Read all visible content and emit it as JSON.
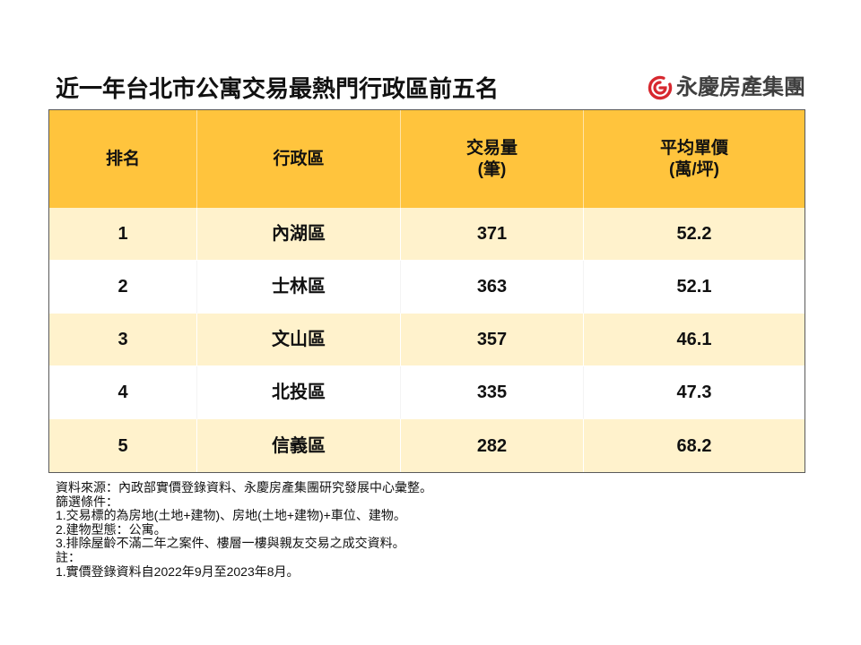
{
  "colors": {
    "header_fill": "#FFC43D",
    "row_fill_odd": "#FFF2CC",
    "row_fill_even": "#FFFFFF",
    "logo_red": "#D7282F",
    "logo_text": "#3F3F3F"
  },
  "logo": {
    "icon": "yungching-logo-icon",
    "text": "永慶房產集團"
  },
  "chart_data": {
    "type": "table",
    "title": "近一年台北市公寓交易最熱門行政區前五名",
    "columns": [
      [
        "排名"
      ],
      [
        "行政區"
      ],
      [
        "交易量",
        "(筆)"
      ],
      [
        "平均單價",
        "(萬/坪)"
      ]
    ],
    "rows": [
      [
        1,
        "內湖區",
        371,
        "52.2"
      ],
      [
        2,
        "士林區",
        363,
        "52.1"
      ],
      [
        3,
        "文山區",
        357,
        "46.1"
      ],
      [
        4,
        "北投區",
        335,
        "47.3"
      ],
      [
        5,
        "信義區",
        282,
        "68.2"
      ]
    ]
  },
  "notes": [
    "資料來源：內政部實價登錄資料、永慶房產集團研究發展中心彙整。",
    "篩選條件：",
    "1.交易標的為房地(土地+建物)、房地(土地+建物)+車位、建物。",
    "2.建物型態：公寓。",
    "3.排除屋齡不滿二年之案件、樓層一樓與親友交易之成交資料。",
    "註：",
    "1.實價登錄資料自2022年9月至2023年8月。"
  ]
}
